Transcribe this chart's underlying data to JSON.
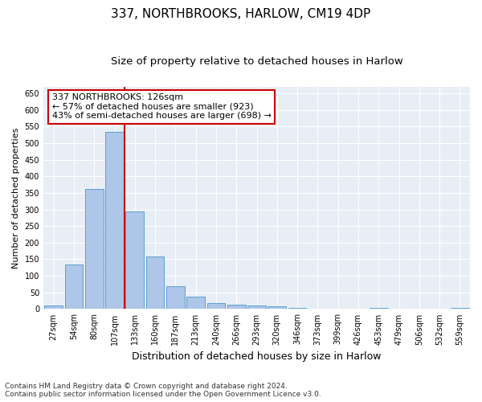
{
  "title1": "337, NORTHBROOKS, HARLOW, CM19 4DP",
  "title2": "Size of property relative to detached houses in Harlow",
  "xlabel": "Distribution of detached houses by size in Harlow",
  "ylabel": "Number of detached properties",
  "bar_labels": [
    "27sqm",
    "54sqm",
    "80sqm",
    "107sqm",
    "133sqm",
    "160sqm",
    "187sqm",
    "213sqm",
    "240sqm",
    "266sqm",
    "293sqm",
    "320sqm",
    "346sqm",
    "373sqm",
    "399sqm",
    "426sqm",
    "453sqm",
    "479sqm",
    "506sqm",
    "532sqm",
    "559sqm"
  ],
  "bar_values": [
    10,
    135,
    362,
    535,
    293,
    158,
    68,
    38,
    17,
    14,
    10,
    8,
    3,
    2,
    0,
    0,
    3,
    0,
    0,
    0,
    3
  ],
  "bar_color": "#aec6e8",
  "bar_edge_color": "#5a9fd4",
  "vline_color": "#cc0000",
  "annotation_line1": "337 NORTHBROOKS: 126sqm",
  "annotation_line2": "← 57% of detached houses are smaller (923)",
  "annotation_line3": "43% of semi-detached houses are larger (698) →",
  "annotation_box_color": "white",
  "annotation_box_edge": "#cc0000",
  "ylim": [
    0,
    670
  ],
  "yticks": [
    0,
    50,
    100,
    150,
    200,
    250,
    300,
    350,
    400,
    450,
    500,
    550,
    600,
    650
  ],
  "background_color": "#e8eef5",
  "footer1": "Contains HM Land Registry data © Crown copyright and database right 2024.",
  "footer2": "Contains public sector information licensed under the Open Government Licence v3.0.",
  "title1_fontsize": 11,
  "title2_fontsize": 9.5,
  "xlabel_fontsize": 9,
  "ylabel_fontsize": 8,
  "tick_fontsize": 7,
  "footer_fontsize": 6.5,
  "annotation_fontsize": 8
}
